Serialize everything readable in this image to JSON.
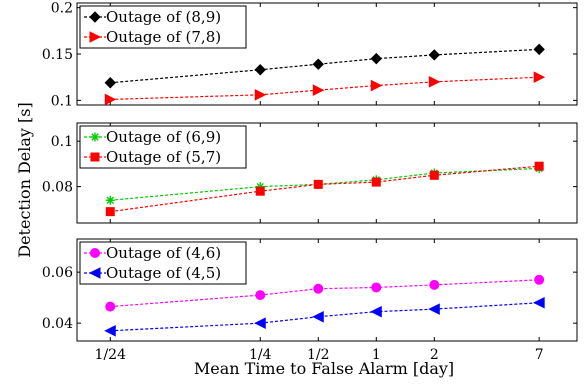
{
  "chart_data": {
    "type": "line",
    "xlabel": "Mean Time to False Alarm [day]",
    "ylabel": "Detection Delay [s]",
    "x_categories": [
      "1/24",
      "1/4",
      "1/2",
      "1",
      "2",
      "7"
    ],
    "x_values_day": [
      0.0416667,
      0.25,
      0.5,
      1,
      2,
      7
    ],
    "x_scale": "log",
    "grid": false,
    "legend_placement": "top-left",
    "subplots": [
      {
        "ylim": [
          0.095,
          0.205
        ],
        "yticks": [
          "0.1",
          "0.15",
          "0.2"
        ],
        "ytick_values": [
          0.1,
          0.15,
          0.2
        ],
        "series": [
          {
            "name": "Outage of (8,9)",
            "color": "#000000",
            "marker": "diamond",
            "values": [
              0.119,
              0.133,
              0.139,
              0.145,
              0.149,
              0.155
            ]
          },
          {
            "name": "Outage of (7,8)",
            "color": "#ff0000",
            "marker": "triangle-right",
            "values": [
              0.101,
              0.106,
              0.111,
              0.116,
              0.12,
              0.125
            ]
          }
        ]
      },
      {
        "ylim": [
          0.064,
          0.108
        ],
        "yticks": [
          "0.08",
          "0.1"
        ],
        "ytick_values": [
          0.08,
          0.1
        ],
        "series": [
          {
            "name": "Outage of (6,9)",
            "color": "#00cc00",
            "marker": "star",
            "values": [
              0.074,
              0.08,
              0.081,
              0.083,
              0.086,
              0.088
            ]
          },
          {
            "name": "Outage of (5,7)",
            "color": "#ff0000",
            "marker": "square",
            "values": [
              0.069,
              0.078,
              0.081,
              0.082,
              0.085,
              0.089
            ]
          }
        ]
      },
      {
        "ylim": [
          0.033,
          0.073
        ],
        "yticks": [
          "0.04",
          "0.06"
        ],
        "ytick_values": [
          0.04,
          0.06
        ],
        "series": [
          {
            "name": "Outage of (4,6)",
            "color": "#ff00ff",
            "marker": "circle",
            "values": [
              0.0465,
              0.051,
              0.0535,
              0.054,
              0.055,
              0.057
            ]
          },
          {
            "name": "Outage of (4,5)",
            "color": "#0000ff",
            "marker": "triangle-left",
            "values": [
              0.037,
              0.04,
              0.0425,
              0.0445,
              0.0455,
              0.048
            ]
          }
        ]
      }
    ]
  }
}
